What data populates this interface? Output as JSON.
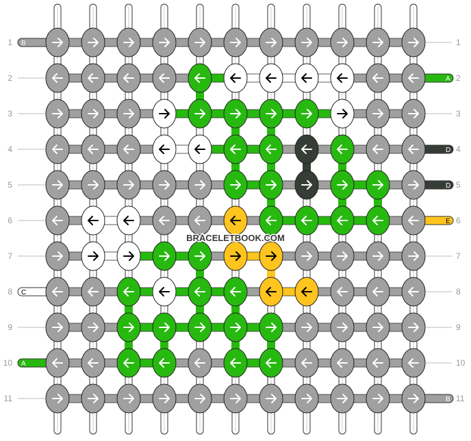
{
  "palette": {
    "N": "#a0a0a0",
    "G": "#27b90f",
    "W": "#ffffff",
    "D": "#363d36",
    "Y": "#ffc41e"
  },
  "watermark": "BRACELETBOOK.COM",
  "row_labels": [
    "1",
    "2",
    "3",
    "4",
    "5",
    "6",
    "7",
    "8",
    "9",
    "10",
    "11"
  ],
  "rows": [
    {
      "direction": "→",
      "knots": [
        "N",
        "N",
        "N",
        "N",
        "N",
        "N",
        "N",
        "N",
        "N",
        "N",
        "N"
      ]
    },
    {
      "direction": "←",
      "knots": [
        "N",
        "N",
        "N",
        "N",
        "G",
        "W",
        "W",
        "W",
        "W",
        "N",
        "N"
      ]
    },
    {
      "direction": "→",
      "knots": [
        "N",
        "N",
        "N",
        "W",
        "G",
        "G",
        "G",
        "G",
        "W",
        "N",
        "N"
      ]
    },
    {
      "direction": "←",
      "knots": [
        "N",
        "N",
        "N",
        "W",
        "W",
        "G",
        "G",
        "D",
        "G",
        "N",
        "N"
      ]
    },
    {
      "direction": "→",
      "knots": [
        "N",
        "N",
        "N",
        "N",
        "N",
        "G",
        "G",
        "D",
        "G",
        "G",
        "N"
      ]
    },
    {
      "direction": "←",
      "knots": [
        "N",
        "W",
        "W",
        "N",
        "N",
        "Y",
        "G",
        "G",
        "G",
        "G",
        "N"
      ]
    },
    {
      "direction": "→",
      "knots": [
        "N",
        "W",
        "W",
        "G",
        "G",
        "Y",
        "Y",
        "N",
        "N",
        "N",
        "N"
      ]
    },
    {
      "direction": "←",
      "knots": [
        "N",
        "N",
        "G",
        "W",
        "G",
        "G",
        "Y",
        "Y",
        "N",
        "N",
        "N"
      ]
    },
    {
      "direction": "→",
      "knots": [
        "N",
        "N",
        "G",
        "G",
        "G",
        "G",
        "G",
        "N",
        "N",
        "N",
        "N"
      ]
    },
    {
      "direction": "←",
      "knots": [
        "N",
        "N",
        "G",
        "G",
        "N",
        "G",
        "G",
        "N",
        "N",
        "N",
        "N"
      ]
    },
    {
      "direction": "→",
      "knots": [
        "N",
        "N",
        "N",
        "N",
        "N",
        "N",
        "N",
        "N",
        "N",
        "N",
        "N"
      ]
    }
  ],
  "strands_left": [
    {
      "row": 1,
      "label": "B",
      "color": "N"
    },
    {
      "row": 8,
      "label": "C",
      "color": "W"
    },
    {
      "row": 10,
      "label": "A",
      "color": "G"
    }
  ],
  "strands_right": [
    {
      "row": 2,
      "label": "A",
      "color": "G"
    },
    {
      "row": 4,
      "label": "D",
      "color": "D"
    },
    {
      "row": 5,
      "label": "D",
      "color": "D"
    },
    {
      "row": 6,
      "label": "E",
      "color": "Y"
    },
    {
      "row": 11,
      "label": "B",
      "color": "N"
    }
  ]
}
